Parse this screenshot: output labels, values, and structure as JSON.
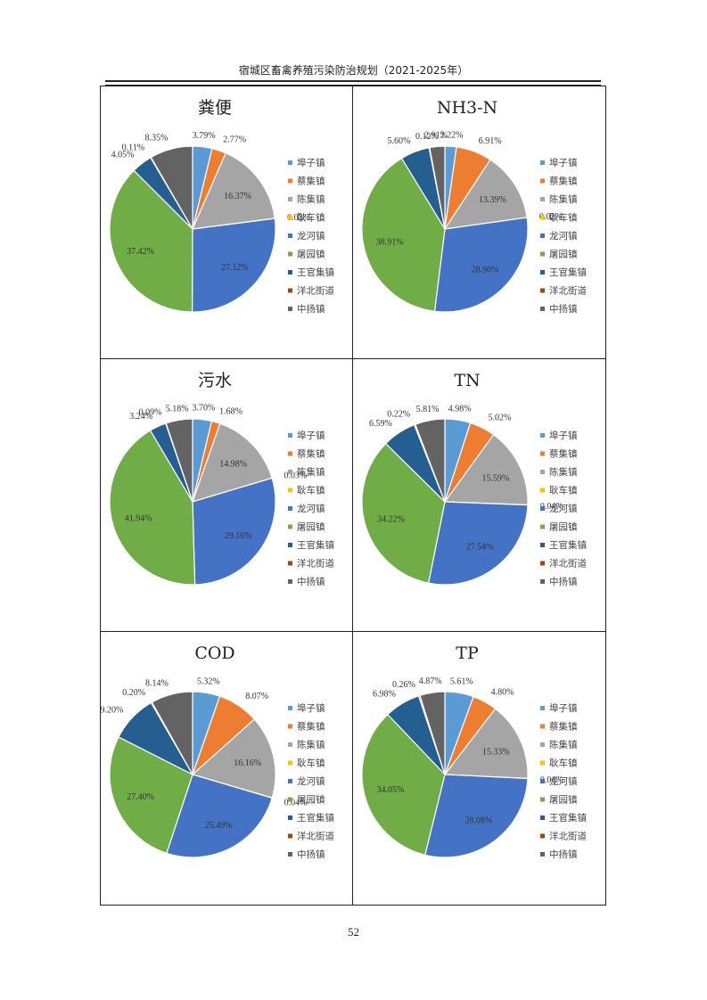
{
  "header": {
    "title": "宿城区畜禽养殖污染防治规划（2021-2025年）"
  },
  "page_number": "52",
  "colors": [
    "#5B9BD5",
    "#ED7D31",
    "#A5A5A5",
    "#FFC000",
    "#4472C4",
    "#70AD47",
    "#255E91",
    "#9E480E",
    "#636363"
  ],
  "chart_data": [
    {
      "type": "pie",
      "title": "粪便",
      "categories": [
        "埠子镇",
        "蔡集镇",
        "陈集镇",
        "耿车镇",
        "龙河镇",
        "屠园镇",
        "王官集镇",
        "洋北街道",
        "中扬镇"
      ],
      "legend": [
        "埠子镇",
        "蔡集镇",
        "陈集镇",
        "耿车镇",
        "龙河镇",
        "屠园镇",
        "王官集镇",
        "洋北街道",
        "中扬镇"
      ],
      "values": [
        3.79,
        2.77,
        16.37,
        0.03,
        27.12,
        37.42,
        4.05,
        0.11,
        8.35
      ],
      "labels": [
        "3.79%",
        "2.77%",
        "16.37%",
        "0.03%",
        "27.12%",
        "37.42%",
        "4.05%",
        "0.11%",
        "8.35%"
      ],
      "legend_position": "right"
    },
    {
      "type": "pie",
      "title": "NH3-N",
      "categories": [
        "埠子镇",
        "蔡集镇",
        "陈集镇",
        "耿车镇",
        "龙河镇",
        "屠园镇",
        "王官集镇",
        "洋北街道",
        "中扬镇"
      ],
      "legend": [
        "埠子镇",
        "蔡集镇",
        "陈集镇",
        "耿车镇",
        "龙河镇",
        "屠园镇",
        "王官集镇",
        "洋北街道",
        "中扬镇"
      ],
      "values": [
        2.22,
        6.91,
        13.39,
        0.02,
        28.9,
        38.91,
        5.6,
        0.12,
        2.91
      ],
      "labels": [
        "2.22%",
        "6.91%",
        "13.39%",
        "0.02%",
        "28.90%",
        "38.91%",
        "5.60%",
        "0.12%",
        "2.91%"
      ],
      "legend_position": "right"
    },
    {
      "type": "pie",
      "title": "污水",
      "categories": [
        "埠子镇",
        "蔡集镇",
        "陈集镇",
        "耿车镇",
        "龙河镇",
        "屠园镇",
        "王官集镇",
        "洋北街道",
        "中扬镇"
      ],
      "legend": [
        "埠子镇",
        "蔡集镇",
        "陈集镇",
        "耿车镇",
        "龙河镇",
        "屠园镇",
        "王官集镇",
        "洋北街道",
        "中扬镇"
      ],
      "values": [
        3.7,
        1.68,
        14.98,
        0.03,
        29.16,
        41.94,
        3.24,
        0.09,
        5.18
      ],
      "labels": [
        "3.70%",
        "1.68%",
        "14.98%",
        "0.03%",
        "29.16%",
        "41.94%",
        "3.24%",
        "0.09%",
        "5.18%"
      ],
      "legend_position": "right"
    },
    {
      "type": "pie",
      "title": "TN",
      "categories": [
        "埠子镇",
        "蔡集镇",
        "陈集镇",
        "耿车镇",
        "龙河镇",
        "屠园镇",
        "王官集镇",
        "洋北街道",
        "中扬镇"
      ],
      "legend": [
        "埠子镇",
        "蔡集镇",
        "陈集镇",
        "耿车镇",
        "龙河镇",
        "屠园镇",
        "王官集镇",
        "洋北街道",
        "中扬镇"
      ],
      "values": [
        4.98,
        5.02,
        15.59,
        0.04,
        27.54,
        34.22,
        6.59,
        0.22,
        5.81
      ],
      "labels": [
        "4.98%",
        "5.02%",
        "15.59%",
        "0.04%",
        "27.54%",
        "34.22%",
        "6.59%",
        "0.22%",
        "5.81%"
      ],
      "legend_position": "right"
    },
    {
      "type": "pie",
      "title": "COD",
      "categories": [
        "埠子镇",
        "蔡集镇",
        "陈集镇",
        "耿车镇",
        "龙河镇",
        "屠园镇",
        "王官集镇",
        "洋北街道",
        "中扬镇"
      ],
      "legend": [
        "埠子镇",
        "蔡集镇",
        "陈集镇",
        "耿车镇",
        "龙河镇",
        "屠园镇",
        "王官集镇",
        "洋北街道",
        "中扬镇"
      ],
      "values": [
        5.32,
        8.07,
        16.16,
        0.04,
        25.49,
        27.4,
        9.2,
        0.2,
        8.14
      ],
      "labels": [
        "5.32%",
        "8.07%",
        "16.16%",
        "0.04%",
        "25.49%",
        "27.40%",
        "9.20%",
        "0.20%",
        "8.14%"
      ],
      "legend_position": "right"
    },
    {
      "type": "pie",
      "title": "TP",
      "categories": [
        "埠子镇",
        "蔡集镇",
        "陈集镇",
        "耿车镇",
        "龙河镇",
        "屠园镇",
        "王官集镇",
        "洋北街道",
        "中扬镇"
      ],
      "legend": [
        "埠子镇",
        "蔡集镇",
        "陈集镇",
        "耿车镇",
        "龙河镇",
        "屠园镇",
        "王官集镇",
        "洋北街道",
        "中扬镇"
      ],
      "values": [
        5.61,
        4.8,
        15.33,
        0.04,
        28.08,
        34.05,
        6.98,
        0.26,
        4.87
      ],
      "labels": [
        "5.61%",
        "4.80%",
        "15.33%",
        "0.04%",
        "28.08%",
        "34.05%",
        "6.98%",
        "0.26%",
        "4.87%"
      ],
      "legend_position": "right"
    }
  ]
}
